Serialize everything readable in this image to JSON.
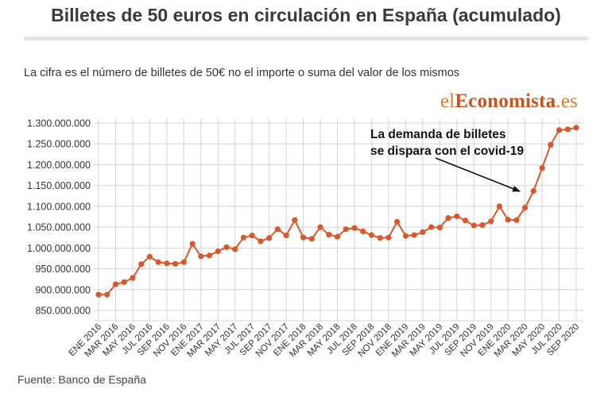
{
  "title": "Billetes de 50 euros en circulación en España (acumulado)",
  "subtitle": "La cifra es el número de billetes de 50€ no el importe o suma del valor de los mismos",
  "source": "Fuente: Banco de España",
  "logo": {
    "part1": "el",
    "part2": "Economista",
    "part3": ".es"
  },
  "colors": {
    "line": "#d9582b",
    "grid": "#d4d4d4",
    "accent": "#e0792a"
  },
  "chart_data": {
    "type": "line",
    "title": "Billetes de 50 euros en circulación en España (acumulado)",
    "xlabel": "",
    "ylabel": "",
    "ylim": [
      850000000,
      1300000000
    ],
    "yticks": [
      {
        "value": 850000000,
        "label": "850.000.000"
      },
      {
        "value": 900000000,
        "label": "900.000.000"
      },
      {
        "value": 950000000,
        "label": "950.000.000"
      },
      {
        "value": 1000000000,
        "label": "1.000.000.000"
      },
      {
        "value": 1050000000,
        "label": "1.050.000.000"
      },
      {
        "value": 1100000000,
        "label": "1.100.000.000"
      },
      {
        "value": 1150000000,
        "label": "1.150.000.000"
      },
      {
        "value": 1200000000,
        "label": "1.200.000.000"
      },
      {
        "value": 1250000000,
        "label": "1.250.000.000"
      },
      {
        "value": 1300000000,
        "label": "1.300.000.000"
      }
    ],
    "xtick_labels": [
      "ENE 2016",
      "MAR 2016",
      "MAY 2016",
      "JUL 2016",
      "SEP 2016",
      "NOV 2016",
      "ENE 2017",
      "MAR 2017",
      "MAY 2017",
      "JUL 2017",
      "SEP 2017",
      "NOV 2017",
      "ENE 2018",
      "MAR 2018",
      "MAY 2018",
      "JUL 2018",
      "SEP 2018",
      "NOV 2018",
      "ENE 2019",
      "MAR 2019",
      "MAY 2019",
      "JUL 2019",
      "SEP 2019",
      "NOV 2019",
      "ENE 2020",
      "MAR 2020",
      "MAY 2020",
      "JUL 2020",
      "SEP 2020"
    ],
    "series": [
      {
        "name": "Billetes de 50€",
        "values": [
          888000000,
          888000000,
          913000000,
          918000000,
          928000000,
          961000000,
          979000000,
          966000000,
          963000000,
          962000000,
          966000000,
          1010000000,
          980000000,
          982000000,
          992000000,
          1002000000,
          997000000,
          1025000000,
          1030000000,
          1016000000,
          1024000000,
          1045000000,
          1030000000,
          1067000000,
          1025000000,
          1022000000,
          1050000000,
          1032000000,
          1027000000,
          1045000000,
          1048000000,
          1040000000,
          1031000000,
          1024000000,
          1025000000,
          1063000000,
          1029000000,
          1031000000,
          1038000000,
          1050000000,
          1049000000,
          1072000000,
          1076000000,
          1066000000,
          1054000000,
          1055000000,
          1064000000,
          1100000000,
          1068000000,
          1067000000,
          1097000000,
          1137000000,
          1192000000,
          1248000000,
          1283000000,
          1285000000,
          1289000000
        ]
      }
    ],
    "annotation": {
      "line1": "La demanda de billetes",
      "line2": "se dispara con el covid-19"
    }
  }
}
